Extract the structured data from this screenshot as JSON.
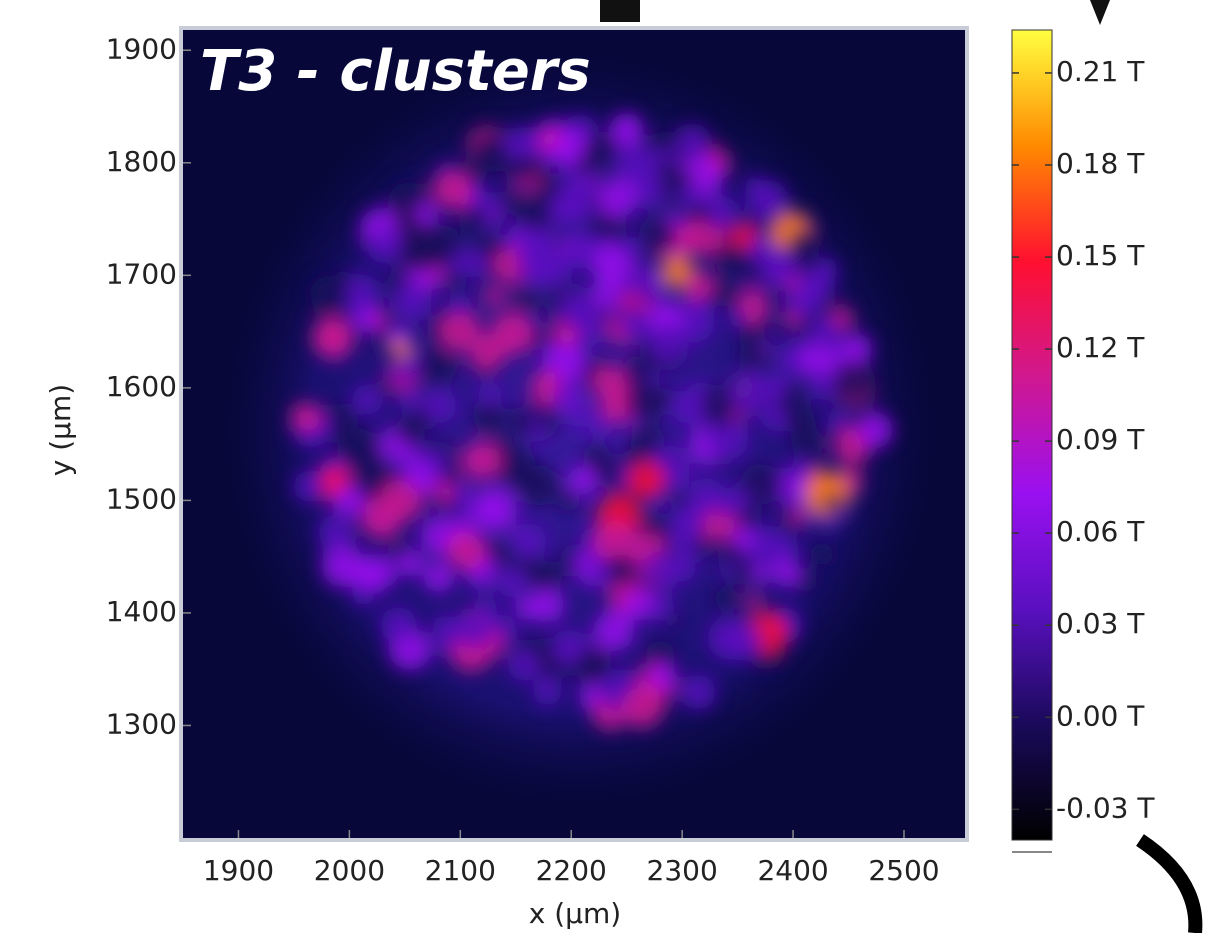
{
  "chart_data": {
    "type": "heatmap",
    "annotation": "T3 - clusters",
    "xlabel": "x (µm)",
    "ylabel": "y (µm)",
    "xlim": [
      1850,
      2555
    ],
    "ylim": [
      1200,
      1918
    ],
    "xticks": [
      1900,
      2000,
      2100,
      2200,
      2300,
      2400,
      2500
    ],
    "yticks": [
      1300,
      1400,
      1500,
      1600,
      1700,
      1800,
      1900
    ],
    "colorbar": {
      "lim": [
        -0.04,
        0.224
      ],
      "ticks": [
        {
          "value": -0.03,
          "label": "-0.03 T"
        },
        {
          "value": 0.0,
          "label": "0.00 T"
        },
        {
          "value": 0.03,
          "label": "0.03 T"
        },
        {
          "value": 0.06,
          "label": "0.06 T"
        },
        {
          "value": 0.09,
          "label": "0.09 T"
        },
        {
          "value": 0.12,
          "label": "0.12 T"
        },
        {
          "value": 0.15,
          "label": "0.15 T"
        },
        {
          "value": 0.18,
          "label": "0.18 T"
        },
        {
          "value": 0.21,
          "label": "0.21 T"
        }
      ]
    },
    "colormap": [
      "#000000",
      "#1a0a5a",
      "#5a10c0",
      "#9a10f0",
      "#d01890",
      "#ff1030",
      "#ff8a00",
      "#ffff40"
    ]
  }
}
